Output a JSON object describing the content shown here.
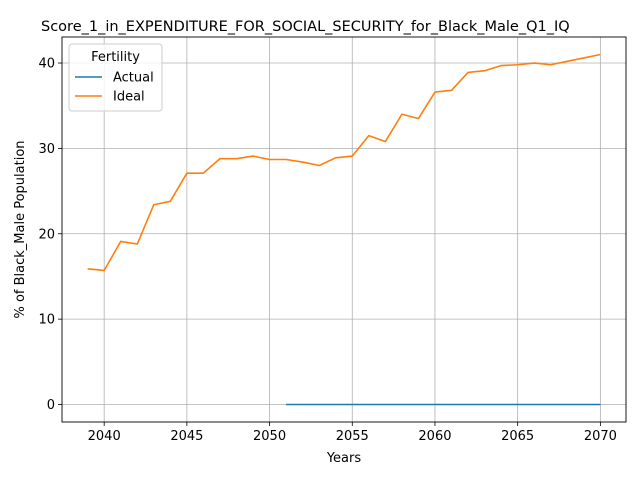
{
  "chart_data": {
    "type": "line",
    "title": "Score_1_in_EXPENDITURE_FOR_SOCIAL_SECURITY_for_Black_Male_Q1_IQ",
    "xlabel": "Years",
    "ylabel": "% of Black_Male Population",
    "xlim": [
      2037.45,
      2071.55
    ],
    "ylim": [
      -2.05,
      43.05
    ],
    "xticks": [
      2040,
      2045,
      2050,
      2055,
      2060,
      2065,
      2070
    ],
    "yticks": [
      0,
      10,
      20,
      30,
      40
    ],
    "grid": true,
    "legend": {
      "title": "Fertility",
      "placement": "top-left"
    },
    "series": [
      {
        "name": "Actual",
        "color": "#1f77b4",
        "x": [
          2051,
          2052,
          2053,
          2054,
          2055,
          2056,
          2057,
          2058,
          2059,
          2060,
          2061,
          2062,
          2063,
          2064,
          2065,
          2066,
          2067,
          2068,
          2069,
          2070
        ],
        "y": [
          0,
          0,
          0,
          0,
          0,
          0,
          0,
          0,
          0,
          0,
          0,
          0,
          0,
          0,
          0,
          0,
          0,
          0,
          0,
          0
        ]
      },
      {
        "name": "Ideal",
        "color": "#ff7f0e",
        "x": [
          2039,
          2040,
          2041,
          2042,
          2043,
          2044,
          2045,
          2046,
          2047,
          2048,
          2049,
          2050,
          2051,
          2052,
          2053,
          2054,
          2055,
          2056,
          2057,
          2058,
          2059,
          2060,
          2061,
          2062,
          2063,
          2064,
          2065,
          2066,
          2067,
          2068,
          2069,
          2070
        ],
        "y": [
          15.9,
          15.7,
          19.1,
          18.8,
          23.4,
          23.8,
          27.1,
          27.1,
          28.8,
          28.8,
          29.1,
          28.7,
          28.7,
          28.4,
          28.0,
          28.9,
          29.1,
          31.5,
          30.8,
          34.0,
          33.5,
          36.6,
          36.8,
          38.9,
          39.1,
          39.7,
          39.8,
          40.0,
          39.8,
          40.2,
          40.6,
          41.0
        ]
      }
    ]
  }
}
